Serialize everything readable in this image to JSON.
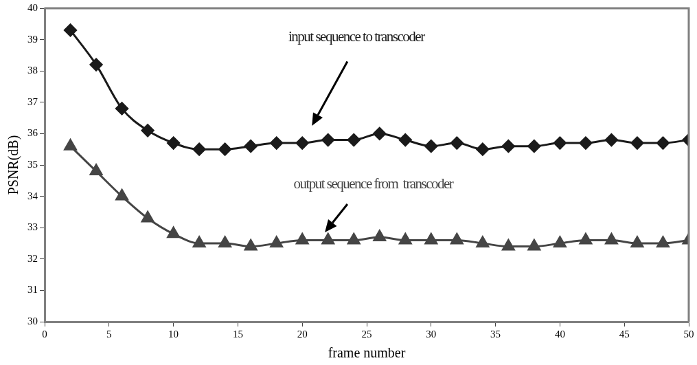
{
  "chart_data": {
    "type": "line",
    "xlabel": "frame number",
    "ylabel": "PSNR(dB)",
    "x": [
      2,
      4,
      6,
      8,
      10,
      12,
      14,
      16,
      18,
      20,
      22,
      24,
      26,
      28,
      30,
      32,
      34,
      36,
      38,
      40,
      42,
      44,
      46,
      48,
      50
    ],
    "xlim": [
      0,
      50
    ],
    "xticks": [
      0,
      5,
      10,
      15,
      20,
      25,
      30,
      35,
      40,
      45,
      50
    ],
    "ylim": [
      30,
      40
    ],
    "yticks": [
      30,
      31,
      32,
      33,
      34,
      35,
      36,
      37,
      38,
      39,
      40
    ],
    "grid": false,
    "legend": false,
    "line_style": "solid",
    "series": [
      {
        "name": "input sequence to transcoder",
        "color": "#1a1a1a",
        "marker": "diamond",
        "values": [
          39.3,
          38.2,
          36.8,
          36.1,
          35.7,
          35.5,
          35.5,
          35.6,
          35.7,
          35.7,
          35.8,
          35.8,
          36.0,
          35.8,
          35.6,
          35.7,
          35.5,
          35.6,
          35.6,
          35.7,
          35.7,
          35.8,
          35.7,
          35.7,
          35.8
        ]
      },
      {
        "name": "output sequence from  transcoder",
        "color": "#454545",
        "marker": "triangle",
        "values": [
          35.6,
          34.8,
          34.0,
          33.3,
          32.8,
          32.5,
          32.5,
          32.4,
          32.5,
          32.6,
          32.6,
          32.6,
          32.7,
          32.6,
          32.6,
          32.6,
          32.5,
          32.4,
          32.4,
          32.5,
          32.6,
          32.6,
          32.5,
          32.5,
          32.6
        ]
      }
    ]
  }
}
